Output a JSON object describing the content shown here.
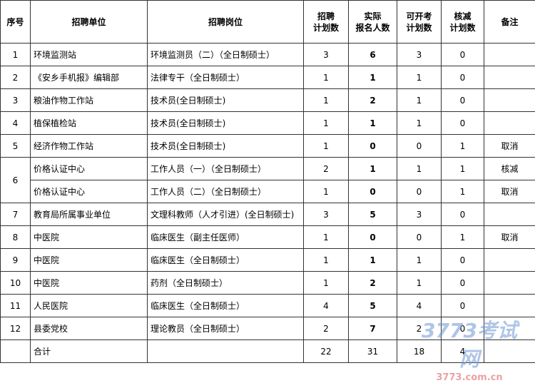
{
  "table": {
    "header": {
      "no": "序号",
      "unit": "招聘单位",
      "post": "招聘岗位",
      "plan": [
        "招聘",
        "计划数"
      ],
      "actual": [
        "实际",
        "报名人数"
      ],
      "open": [
        "可开考",
        "计划数"
      ],
      "cut": [
        "核减",
        "计划数"
      ],
      "note": "备注"
    },
    "rows": [
      {
        "no": 1,
        "unit": "环境监测站",
        "post": "环境监测员（二）（全日制硕士）",
        "plan": 3,
        "actual": 6,
        "open": 3,
        "cut": 0
      },
      {
        "no": 2,
        "unit": "《安乡手机报》编辑部",
        "post": "法律专干（全日制硕士）",
        "plan": 1,
        "actual": 1,
        "open": 1,
        "cut": 0
      },
      {
        "no": 3,
        "unit": "粮油作物工作站",
        "post": "技术员(全日制硕士)",
        "plan": 1,
        "actual": 2,
        "open": 1,
        "cut": 0
      },
      {
        "no": 4,
        "unit": "植保植检站",
        "post": "技术员(全日制硕士)",
        "plan": 1,
        "actual": 1,
        "open": 1,
        "cut": 0
      },
      {
        "no": 5,
        "unit": "经济作物工作站",
        "post": "技术员(全日制硕士)",
        "plan": 1,
        "actual": 0,
        "open": 0,
        "cut": 1,
        "note": "取消"
      },
      {
        "no": 6,
        "unit": "价格认证中心",
        "post": "工作人员（一）（全日制硕士）",
        "plan": 2,
        "actual": 1,
        "open": 1,
        "cut": 1,
        "note": "核减"
      },
      {
        "unit": "价格认证中心",
        "post": "工作人员（二）（全日制硕士）",
        "plan": 1,
        "actual": 0,
        "open": 0,
        "cut": 1,
        "note": "取消"
      },
      {
        "no": 7,
        "unit": "教育局所属事业单位",
        "post": "文理科教师（人才引进）(全日制硕士)",
        "plan": 3,
        "actual": 5,
        "open": 3,
        "cut": 0
      },
      {
        "no": 8,
        "unit": "中医院",
        "post": "临床医生（副主任医师）",
        "plan": 1,
        "actual": 0,
        "open": 0,
        "cut": 1,
        "note": "取消"
      },
      {
        "no": 9,
        "unit": "中医院",
        "post": "临床医生（全日制硕士）",
        "plan": 1,
        "actual": 1,
        "open": 1,
        "cut": 0
      },
      {
        "no": 10,
        "unit": "中医院",
        "post": "药剂（全日制硕士）",
        "plan": 1,
        "actual": 2,
        "open": 1,
        "cut": 0
      },
      {
        "no": 11,
        "unit": "人民医院",
        "post": "临床医生（全日制硕士）",
        "plan": 4,
        "actual": 5,
        "open": 4,
        "cut": 0
      },
      {
        "no": 12,
        "unit": "县委党校",
        "post": "理论教员（全日制硕士）",
        "plan": 2,
        "actual": 7,
        "open": 2,
        "cut": 0
      }
    ],
    "total": {
      "label": "合计",
      "plan": 22,
      "actual": 31,
      "open": 18,
      "cut": 4
    }
  },
  "watermark": {
    "logo": "3773考试网",
    "url": "3773.com.cn"
  }
}
